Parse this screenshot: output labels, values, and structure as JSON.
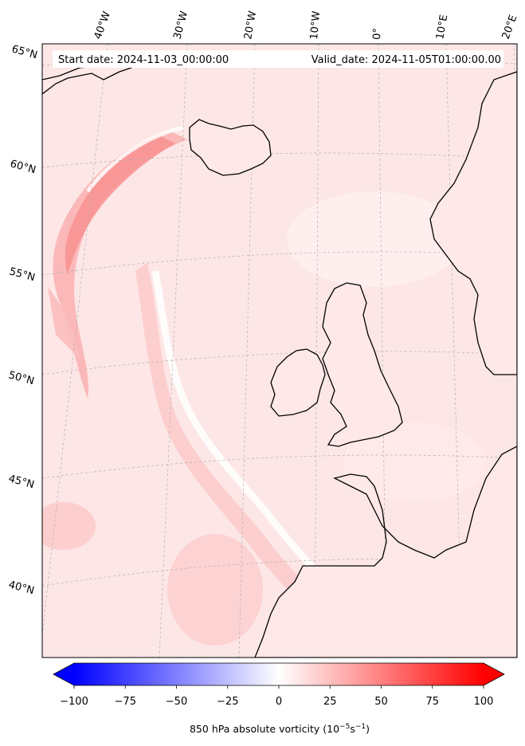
{
  "header": {
    "start_date": "Start date: 2024-11-03_00:00:00",
    "valid_date": "Valid_date: 2024-11-05T01:00:00.00"
  },
  "lon_labels": [
    "40°W",
    "30°W",
    "20°W",
    "10°W",
    "0°",
    "10°E",
    "20°E"
  ],
  "lat_labels": [
    "65°N",
    "60°N",
    "55°N",
    "50°N",
    "45°N",
    "40°N"
  ],
  "colorbar": {
    "ticks": [
      "−100",
      "−75",
      "−50",
      "−25",
      "0",
      "25",
      "50",
      "75",
      "100"
    ],
    "label_prefix": "850 hPa absolute vorticity (10",
    "label_exp1": "−5",
    "label_mid": "s",
    "label_exp2": "−1",
    "label_suffix": ")",
    "min": -100,
    "max": 100,
    "color_negative": "#0000ff",
    "color_zero": "#ffffff",
    "color_positive": "#ff0000"
  },
  "map": {
    "background_color": "#fde3e3",
    "coastline_color": "#000000",
    "gridline_color": "#b0b0b0"
  }
}
